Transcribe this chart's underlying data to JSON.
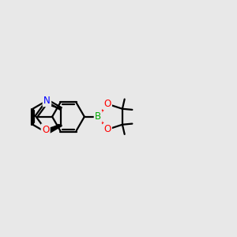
{
  "bg_color": "#e8e8e8",
  "bond_color": "#000000",
  "atom_colors": {
    "N": "#0000ff",
    "O": "#ff0000",
    "B": "#00aa00"
  },
  "line_width": 1.6,
  "figsize": [
    3.0,
    3.0
  ],
  "dpi": 100
}
